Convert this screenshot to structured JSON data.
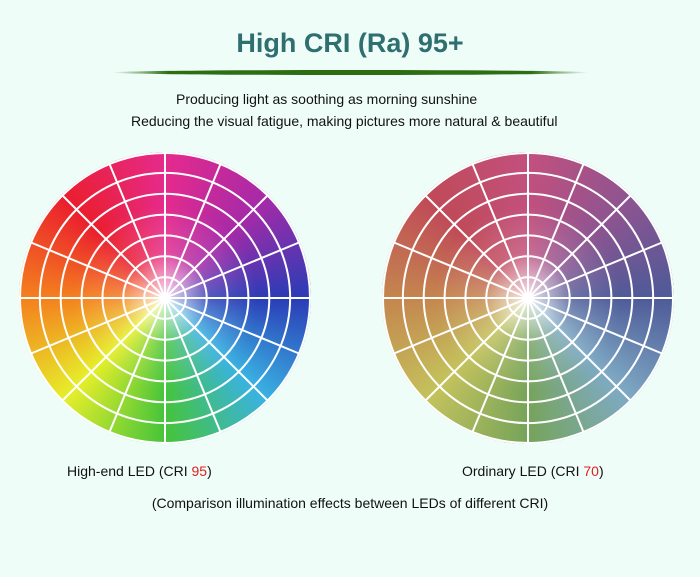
{
  "header": {
    "title": "High CRI (Ra) 95+",
    "lines": [
      "Producing light as soothing as morning sunshine",
      "Reducing the visual fatigue, making pictures more natural & beautiful"
    ]
  },
  "wheels": [
    {
      "label": "High-end LED (CRI ",
      "cri": 95,
      "close": ")"
    },
    {
      "label": "Ordinary LED (CRI ",
      "cri": 70,
      "close": ")"
    }
  ],
  "footer": "(Comparison illumination effects between LEDs of different CRI)"
}
